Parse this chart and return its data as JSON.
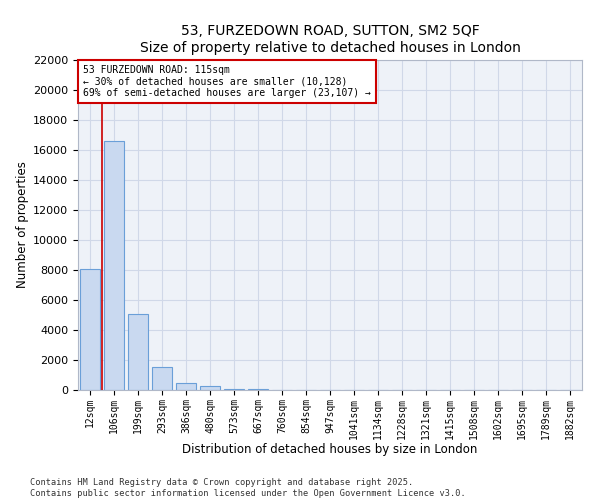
{
  "title": "53, FURZEDOWN ROAD, SUTTON, SM2 5QF",
  "subtitle": "Size of property relative to detached houses in London",
  "xlabel": "Distribution of detached houses by size in London",
  "ylabel": "Number of properties",
  "categories": [
    "12sqm",
    "106sqm",
    "199sqm",
    "293sqm",
    "386sqm",
    "480sqm",
    "573sqm",
    "667sqm",
    "760sqm",
    "854sqm",
    "947sqm",
    "1041sqm",
    "1134sqm",
    "1228sqm",
    "1321sqm",
    "1415sqm",
    "1508sqm",
    "1602sqm",
    "1695sqm",
    "1789sqm",
    "1882sqm"
  ],
  "values": [
    8100,
    16600,
    5100,
    1550,
    480,
    290,
    100,
    90,
    0,
    0,
    0,
    0,
    0,
    0,
    0,
    0,
    0,
    0,
    0,
    0,
    0
  ],
  "bar_color": "#c9d9f0",
  "bar_edge_color": "#6a9fd8",
  "vline_x": 0.5,
  "vline_color": "#cc0000",
  "annotation_text": "53 FURZEDOWN ROAD: 115sqm\n← 30% of detached houses are smaller (10,128)\n69% of semi-detached houses are larger (23,107) →",
  "annotation_box_color": "#cc0000",
  "ylim": [
    0,
    22000
  ],
  "yticks": [
    0,
    2000,
    4000,
    6000,
    8000,
    10000,
    12000,
    14000,
    16000,
    18000,
    20000,
    22000
  ],
  "footer_line1": "Contains HM Land Registry data © Crown copyright and database right 2025.",
  "footer_line2": "Contains public sector information licensed under the Open Government Licence v3.0.",
  "grid_color": "#d0d8e8",
  "bg_color": "#eef2f8"
}
